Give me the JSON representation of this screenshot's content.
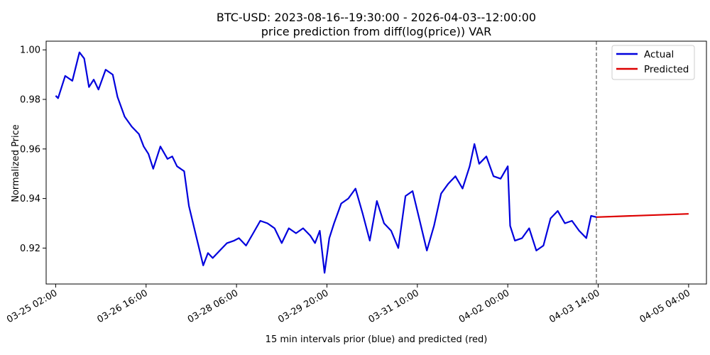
{
  "chart_data": {
    "type": "line",
    "title": "BTC-USD: 2023-08-16--19:30:00 - 2026-04-03--12:00:00",
    "subtitle": "price prediction from diff(log(price)) VAR",
    "xlabel": "15 min intervals prior (blue) and predicted (red)",
    "ylabel": "Normalized Price",
    "x_ticks": [
      "03-25 02:00",
      "03-26 16:00",
      "03-28 06:00",
      "03-29 20:00",
      "03-31 10:00",
      "04-02 00:00",
      "04-03 14:00",
      "04-05 04:00"
    ],
    "y_ticks": [
      "0.92",
      "0.94",
      "0.96",
      "0.98",
      "1.00"
    ],
    "ylim": [
      0.9055,
      1.0035
    ],
    "xlim": [
      "03-24 22:00",
      "04-05 11:30"
    ],
    "grid": false,
    "legend_position": "top-right",
    "cutoff_marker": "04-03 13:15",
    "colors": {
      "actual": "#0000dd",
      "predicted": "#dd0000",
      "cutoff": "#555555"
    },
    "series": [
      {
        "name": "Actual",
        "x": [
          "03-25 02:00",
          "03-25 03:00",
          "03-25 06:00",
          "03-25 09:00",
          "03-25 12:00",
          "03-25 14:00",
          "03-25 16:00",
          "03-25 18:00",
          "03-25 20:00",
          "03-25 23:00",
          "03-26 02:00",
          "03-26 04:00",
          "03-26 07:00",
          "03-26 10:00",
          "03-26 13:00",
          "03-26 15:00",
          "03-26 17:00",
          "03-26 19:00",
          "03-26 22:00",
          "03-27 01:00",
          "03-27 03:00",
          "03-27 05:00",
          "03-27 08:00",
          "03-27 10:00",
          "03-27 13:00",
          "03-27 14:00",
          "03-27 16:00",
          "03-27 18:00",
          "03-27 20:00",
          "03-27 23:00",
          "03-28 02:00",
          "03-28 05:00",
          "03-28 07:00",
          "03-28 10:00",
          "03-28 13:00",
          "03-28 16:00",
          "03-28 19:00",
          "03-28 22:00",
          "03-29 01:00",
          "03-29 04:00",
          "03-29 07:00",
          "03-29 10:00",
          "03-29 13:00",
          "03-29 15:00",
          "03-29 17:00",
          "03-29 19:00",
          "03-29 21:00",
          "03-29 23:00",
          "03-30 02:00",
          "03-30 05:00",
          "03-30 08:00",
          "03-30 11:00",
          "03-30 14:00",
          "03-30 17:00",
          "03-30 20:00",
          "03-30 23:00",
          "03-31 02:00",
          "03-31 05:00",
          "03-31 08:00",
          "03-31 11:00",
          "03-31 14:00",
          "03-31 17:00",
          "03-31 20:00",
          "03-31 23:00",
          "04-01 02:00",
          "04-01 05:00",
          "04-01 08:00",
          "04-01 10:00",
          "04-01 12:00",
          "04-01 15:00",
          "04-01 18:00",
          "04-01 21:00",
          "04-02 00:00",
          "04-02 01:00",
          "04-02 03:00",
          "04-02 06:00",
          "04-02 09:00",
          "04-02 12:00",
          "04-02 15:00",
          "04-02 18:00",
          "04-02 21:00",
          "04-03 00:00",
          "04-03 03:00",
          "04-03 06:00",
          "04-03 09:00",
          "04-03 11:00",
          "04-03 13:15"
        ],
        "values": [
          0.9815,
          0.9805,
          0.9895,
          0.9875,
          0.999,
          0.9965,
          0.985,
          0.988,
          0.984,
          0.992,
          0.99,
          0.981,
          0.973,
          0.969,
          0.966,
          0.961,
          0.958,
          0.952,
          0.961,
          0.956,
          0.957,
          0.953,
          0.951,
          0.937,
          0.925,
          0.921,
          0.913,
          0.918,
          0.916,
          0.919,
          0.922,
          0.923,
          0.924,
          0.921,
          0.926,
          0.931,
          0.93,
          0.928,
          0.922,
          0.928,
          0.926,
          0.928,
          0.925,
          0.922,
          0.927,
          0.91,
          0.924,
          0.93,
          0.938,
          0.94,
          0.944,
          0.934,
          0.923,
          0.939,
          0.93,
          0.927,
          0.92,
          0.941,
          0.943,
          0.931,
          0.919,
          0.929,
          0.942,
          0.946,
          0.949,
          0.944,
          0.953,
          0.962,
          0.954,
          0.957,
          0.949,
          0.948,
          0.953,
          0.929,
          0.923,
          0.924,
          0.928,
          0.919,
          0.921,
          0.932,
          0.935,
          0.93,
          0.931,
          0.927,
          0.924,
          0.933,
          0.9325
        ]
      },
      {
        "name": "Predicted",
        "x": [
          "04-03 13:15",
          "04-05 04:00"
        ],
        "values": [
          0.9325,
          0.9338
        ]
      }
    ]
  }
}
